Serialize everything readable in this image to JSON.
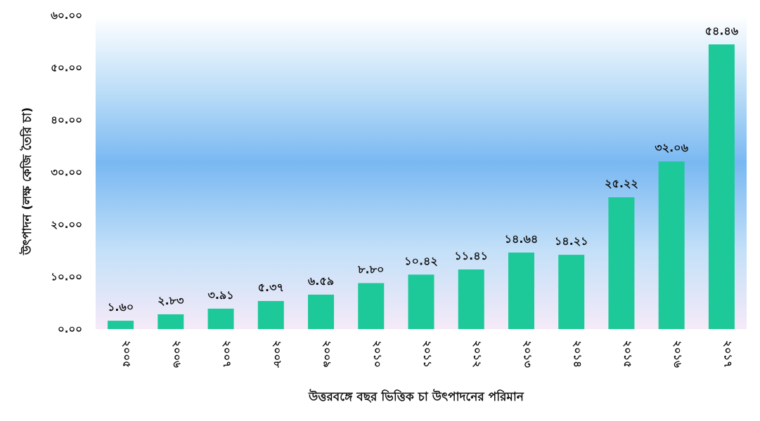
{
  "chart_data": {
    "type": "bar",
    "title": "",
    "xlabel": "উত্তরবঙ্গে বছর ভিত্তিক চা উৎপাদনের পরিমান",
    "ylabel": "উৎপাদন (লক্ষ কেজি তৈরি চা)",
    "ylim": [
      0,
      60
    ],
    "yticks": [
      0,
      10,
      20,
      30,
      40,
      50,
      60
    ],
    "ytick_labels": [
      "০.০০",
      "১০.০০",
      "২০.০০",
      "৩০.০০",
      "৪০.০০",
      "৫০.০০",
      "৬০.০০"
    ],
    "categories": [
      "২০০৫",
      "২০০৬",
      "২০০৭",
      "২০০৮",
      "২০০৯",
      "২০১০",
      "২০১১",
      "২০১২",
      "২০১৩",
      "২০১৪",
      "২০১৫",
      "২০১৬",
      "২০১৭"
    ],
    "values": [
      1.6,
      2.83,
      3.91,
      5.37,
      6.59,
      8.8,
      10.42,
      11.41,
      14.64,
      14.21,
      25.22,
      32.06,
      54.46
    ],
    "value_labels": [
      "১.৬০",
      "২.৮৩",
      "৩.৯১",
      "৫.৩৭",
      "৬.৫৯",
      "৮.৮০",
      "১০.৪২",
      "১১.৪১",
      "১৪.৬৪",
      "১৪.২১",
      "২৫.২২",
      "৩২.০৬",
      "৫৪.৪৬"
    ],
    "bar_color": "#1dc999",
    "gridlines": false,
    "background_gradient": [
      "#ffffff",
      "#b9dcf7",
      "#79b8f2",
      "#c3e0f8",
      "#f5eaf8"
    ]
  }
}
